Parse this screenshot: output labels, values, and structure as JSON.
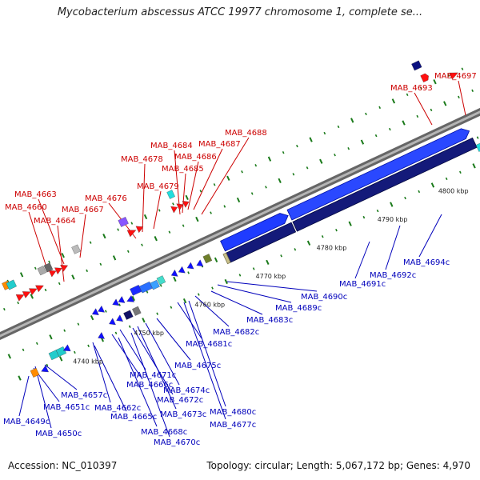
{
  "title": "Mycobacterium abscessus ATCC 19977 chromosome 1, complete se...",
  "footer": {
    "accession": "Accession: NC_010397",
    "info": "Topology: circular; Length: 5,067,172 bp; Genes: 4,970"
  },
  "colors": {
    "forward_gene": "#ff0000",
    "reverse_gene": "#0000ff",
    "forward_label": "#cc0000",
    "reverse_label": "#0000bb",
    "backbone": "#888888",
    "tick": "#008800"
  },
  "kbp_labels": [
    "4740 kbp",
    "4750 kbp",
    "4760 kbp",
    "4770 kbp",
    "4780 kbp",
    "4790 kbp",
    "4800 kbp"
  ],
  "forward_genes": [
    "MAB_4660",
    "MAB_4663",
    "MAB_4664",
    "MAB_4667",
    "MAB_4676",
    "MAB_4678",
    "MAB_4679",
    "MAB_4684",
    "MAB_4685",
    "MAB_4686",
    "MAB_4687",
    "MAB_4688",
    "MAB_4693",
    "MAB_4697"
  ],
  "reverse_genes": [
    "MAB_4649c",
    "MAB_4650c",
    "MAB_4651c",
    "MAB_4657c",
    "MAB_4662c",
    "MAB_4665c",
    "MAB_4666c",
    "MAB_4668c",
    "MAB_4670c",
    "MAB_4671c",
    "MAB_4672c",
    "MAB_4673c",
    "MAB_4674c",
    "MAB_4675c",
    "MAB_4677c",
    "MAB_4680c",
    "MAB_4681c",
    "MAB_4682c",
    "MAB_4683c",
    "MAB_4689c",
    "MAB_4690c",
    "MAB_4691c",
    "MAB_4692c",
    "MAB_4694c"
  ]
}
